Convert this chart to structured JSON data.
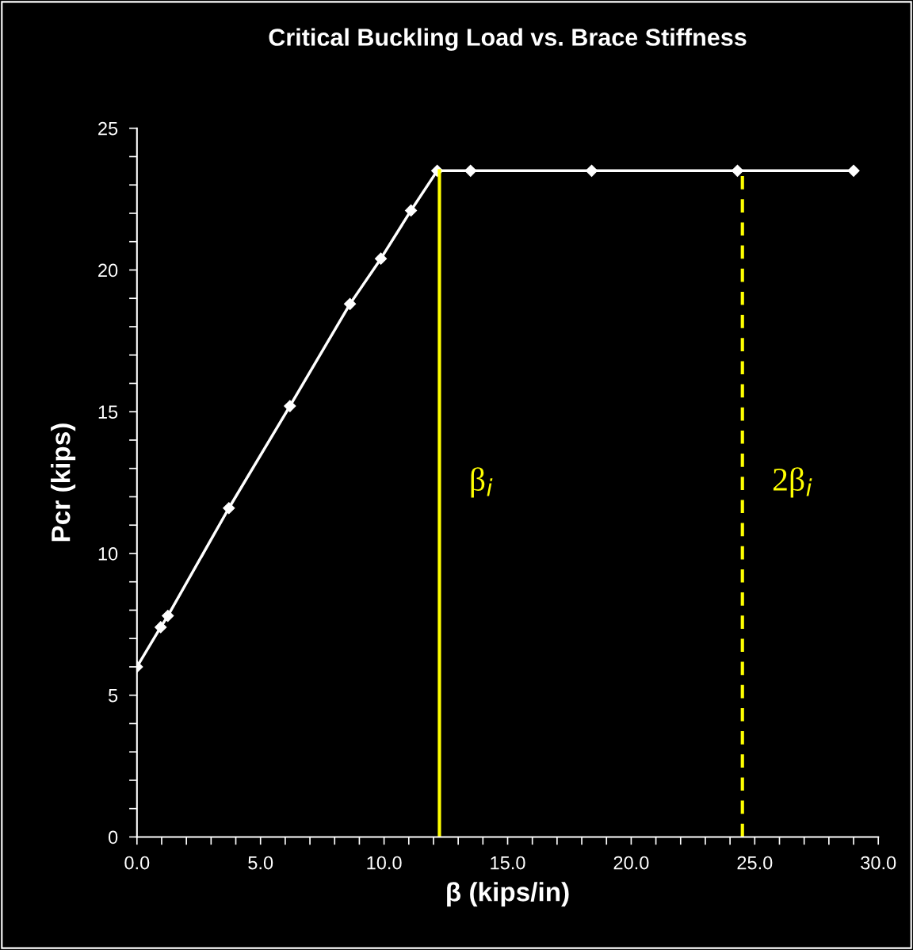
{
  "chart_data": {
    "type": "line",
    "title": "Critical Buckling Load vs. Brace Stiffness",
    "xlabel": "β (kips/in)",
    "ylabel": "Pcr (kips)",
    "x": [
      0.0,
      0.96,
      1.25,
      3.72,
      6.19,
      8.62,
      9.87,
      11.09,
      12.15,
      13.5,
      18.4,
      24.3,
      29.0
    ],
    "series": [
      {
        "color": "#ffffff",
        "values": [
          6.0,
          7.4,
          7.8,
          11.6,
          15.2,
          18.8,
          20.4,
          22.1,
          23.5,
          23.5,
          23.5,
          23.5,
          23.5
        ]
      }
    ],
    "xlim": [
      0,
      30
    ],
    "ylim": [
      0,
      25
    ],
    "xticks": [
      {
        "value": 0,
        "label": "0.0"
      },
      {
        "value": 1,
        "label": null
      },
      {
        "value": 2,
        "label": null
      },
      {
        "value": 3,
        "label": null
      },
      {
        "value": 4,
        "label": null
      },
      {
        "value": 5,
        "label": "5.0"
      },
      {
        "value": 6,
        "label": null
      },
      {
        "value": 7,
        "label": null
      },
      {
        "value": 8,
        "label": null
      },
      {
        "value": 9,
        "label": null
      },
      {
        "value": 10,
        "label": "10.0"
      },
      {
        "value": 11,
        "label": null
      },
      {
        "value": 12,
        "label": null
      },
      {
        "value": 13,
        "label": null
      },
      {
        "value": 14,
        "label": null
      },
      {
        "value": 15,
        "label": "15.0"
      },
      {
        "value": 16,
        "label": null
      },
      {
        "value": 17,
        "label": null
      },
      {
        "value": 18,
        "label": null
      },
      {
        "value": 19,
        "label": null
      },
      {
        "value": 20,
        "label": "20.0"
      },
      {
        "value": 21,
        "label": null
      },
      {
        "value": 22,
        "label": null
      },
      {
        "value": 23,
        "label": null
      },
      {
        "value": 24,
        "label": null
      },
      {
        "value": 25,
        "label": "25.0"
      },
      {
        "value": 26,
        "label": null
      },
      {
        "value": 27,
        "label": null
      },
      {
        "value": 28,
        "label": null
      },
      {
        "value": 29,
        "label": null
      },
      {
        "value": 30,
        "label": "30.0"
      }
    ],
    "yticks": [
      0,
      {
        "value": 1,
        "label": null
      },
      {
        "value": 2,
        "label": null
      },
      {
        "value": 3,
        "label": null
      },
      {
        "value": 4,
        "label": null
      },
      5,
      {
        "value": 6,
        "label": null
      },
      {
        "value": 7,
        "label": null
      },
      {
        "value": 8,
        "label": null
      },
      {
        "value": 9,
        "label": null
      },
      10,
      {
        "value": 11,
        "label": null
      },
      {
        "value": 12,
        "label": null
      },
      {
        "value": 13,
        "label": null
      },
      {
        "value": 14,
        "label": null
      },
      15,
      {
        "value": 16,
        "label": null
      },
      {
        "value": 17,
        "label": null
      },
      {
        "value": 18,
        "label": null
      },
      {
        "value": 19,
        "label": null
      },
      20,
      {
        "value": 21,
        "label": null
      },
      {
        "value": 22,
        "label": null
      },
      {
        "value": 23,
        "label": null
      },
      {
        "value": 24,
        "label": null
      },
      25
    ],
    "ref_lines": [
      {
        "axis": "x",
        "value": 12.24,
        "label": "β$_{i}$",
        "color": "#ffff00",
        "line_style": "solid"
      },
      {
        "axis": "x",
        "value": 24.5,
        "label": "2β$_{i}$",
        "color": "#ffff00",
        "line_style": "dashed"
      }
    ],
    "marker": "diamond",
    "line_style": "solid",
    "grid": false,
    "legend": false
  }
}
